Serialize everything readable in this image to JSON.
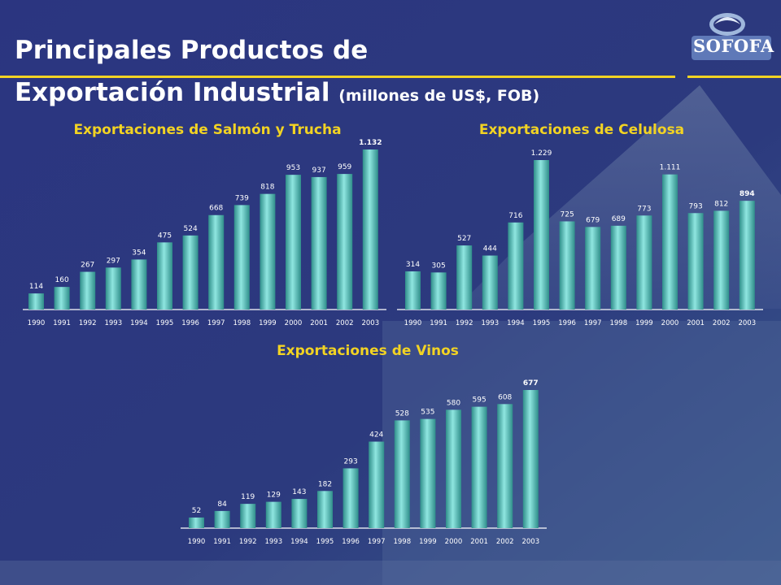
{
  "slide": {
    "title_line1": "Principales Productos de",
    "title_line2": "Exportación Industrial",
    "title_sub": "(millones de US$, FOB)",
    "logo_text": "SOFOFA",
    "accent_color": "#f2d323",
    "bar_color": "#4fc4c0"
  },
  "chart_data": [
    {
      "type": "bar",
      "title": "Exportaciones de Salmón y Trucha",
      "categories": [
        "1990",
        "1991",
        "1992",
        "1993",
        "1994",
        "1995",
        "1996",
        "1997",
        "1998",
        "1999",
        "2000",
        "2001",
        "2002",
        "2003"
      ],
      "values": [
        114,
        160,
        267,
        297,
        354,
        475,
        524,
        668,
        739,
        818,
        953,
        937,
        959,
        1132
      ],
      "value_labels": [
        "114",
        "160",
        "267",
        "297",
        "354",
        "475",
        "524",
        "668",
        "739",
        "818",
        "953",
        "937",
        "959",
        "1.132"
      ],
      "xlabel": "",
      "ylabel": "",
      "ylim": [
        0,
        1150
      ]
    },
    {
      "type": "bar",
      "title": "Exportaciones de Celulosa",
      "categories": [
        "1990",
        "1991",
        "1992",
        "1993",
        "1994",
        "1995",
        "1996",
        "1997",
        "1998",
        "1999",
        "2000",
        "2001",
        "2002",
        "2003"
      ],
      "values": [
        314,
        305,
        527,
        444,
        716,
        1229,
        725,
        679,
        689,
        773,
        1111,
        793,
        812,
        894
      ],
      "value_labels": [
        "314",
        "305",
        "527",
        "444",
        "716",
        "1.229",
        "725",
        "679",
        "689",
        "773",
        "1.111",
        "793",
        "812",
        "894"
      ],
      "xlabel": "",
      "ylabel": "",
      "ylim": [
        0,
        1250
      ]
    },
    {
      "type": "bar",
      "title": "Exportaciones de Vinos",
      "categories": [
        "1990",
        "1991",
        "1992",
        "1993",
        "1994",
        "1995",
        "1996",
        "1997",
        "1998",
        "1999",
        "2000",
        "2001",
        "2002",
        "2003"
      ],
      "values": [
        52,
        84,
        119,
        129,
        143,
        182,
        293,
        424,
        528,
        535,
        580,
        595,
        608,
        677
      ],
      "value_labels": [
        "52",
        "84",
        "119",
        "129",
        "143",
        "182",
        "293",
        "424",
        "528",
        "535",
        "580",
        "595",
        "608",
        "677"
      ],
      "xlabel": "",
      "ylabel": "",
      "ylim": [
        0,
        690
      ]
    }
  ]
}
